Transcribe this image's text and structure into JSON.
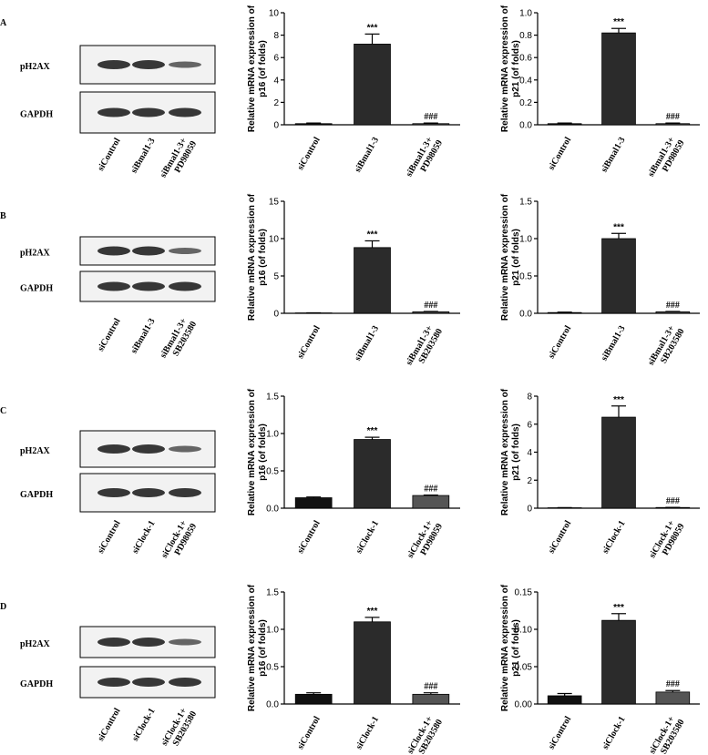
{
  "panel_labels": [
    "A",
    "B",
    "C",
    "D"
  ],
  "blots": [
    {
      "rows": [
        "pH2AX",
        "GAPDH"
      ],
      "lanes": [
        "siControl",
        "siBmal1-3",
        "siBmal1-3+ PD98059"
      ]
    },
    {
      "rows": [
        "pH2AX",
        "GAPDH"
      ],
      "lanes": [
        "siControl",
        "siBmal1-3",
        "siBmal1-3+ SB203580"
      ]
    },
    {
      "rows": [
        "pH2AX",
        "GAPDH"
      ],
      "lanes": [
        "siControl",
        "siClock-1",
        "siClock-1+ PD98059"
      ]
    },
    {
      "rows": [
        "pH2AX",
        "GAPDH"
      ],
      "lanes": [
        "siControl",
        "siClock-1",
        "siClock-1+ SB203580"
      ]
    }
  ],
  "chart_data": [
    {
      "type": "bar",
      "ylabel": [
        "Relative mRNA expression of",
        "p16 (of folds)"
      ],
      "categories": [
        "siControl",
        "siBmal1-3",
        "siBmal1-3+ PD98059"
      ],
      "values": [
        0.1,
        7.2,
        0.1
      ],
      "errors": [
        0.05,
        0.9,
        0.05
      ],
      "annotations": [
        null,
        "***",
        "###"
      ],
      "colors": [
        "#111111",
        "#2b2b2b",
        "#555555"
      ],
      "ylim": [
        0,
        10
      ],
      "yticks": [
        0,
        2,
        4,
        6,
        8,
        10
      ]
    },
    {
      "type": "bar",
      "ylabel": [
        "Relative mRNA expression of",
        "p21 (of folds)"
      ],
      "categories": [
        "siControl",
        "siBmal1-3",
        "siBmal1-3+ PD98059"
      ],
      "values": [
        0.01,
        0.82,
        0.01
      ],
      "errors": [
        0.005,
        0.04,
        0.005
      ],
      "annotations": [
        null,
        "***",
        "###"
      ],
      "colors": [
        "#111111",
        "#2b2b2b",
        "#555555"
      ],
      "ylim": [
        0,
        1
      ],
      "yticks": [
        {
          "value": 0,
          "label": "0.0"
        },
        0.2,
        0.4,
        0.6,
        0.8,
        {
          "value": 1,
          "label": "1.0"
        }
      ]
    },
    {
      "type": "bar",
      "ylabel": [
        "Relative mRNA expression of",
        "p16 (of folds)"
      ],
      "categories": [
        "siControl",
        "siBmal1-3",
        "siBmal1-3+ SB203580"
      ],
      "values": [
        0.05,
        8.8,
        0.2
      ],
      "errors": [
        0.02,
        0.9,
        0.05
      ],
      "annotations": [
        null,
        "***",
        "###"
      ],
      "colors": [
        "#111111",
        "#2b2b2b",
        "#555555"
      ],
      "ylim": [
        0,
        15
      ],
      "yticks": [
        0,
        5,
        10,
        15
      ]
    },
    {
      "type": "bar",
      "ylabel": [
        "Relative mRNA expression of",
        "p21 (of folds)"
      ],
      "categories": [
        "siControl",
        "siBmal1-3",
        "siBmal1-3+ SB203580"
      ],
      "values": [
        0.01,
        1.0,
        0.02
      ],
      "errors": [
        0.005,
        0.07,
        0.005
      ],
      "annotations": [
        null,
        "***",
        "###"
      ],
      "colors": [
        "#111111",
        "#2b2b2b",
        "#555555"
      ],
      "ylim": [
        0,
        1.5
      ],
      "yticks": [
        {
          "value": 0,
          "label": "0.0"
        },
        0.5,
        {
          "value": 1,
          "label": "1.0"
        },
        1.5
      ]
    },
    {
      "type": "bar",
      "ylabel": [
        "Relative mRNA expression of",
        "p16 (of folds)"
      ],
      "categories": [
        "siControl",
        "siClock-1",
        "siClock-1+ PD98059"
      ],
      "values": [
        0.14,
        0.92,
        0.17
      ],
      "errors": [
        0.01,
        0.03,
        0.005
      ],
      "annotations": [
        null,
        "***",
        "###"
      ],
      "colors": [
        "#111111",
        "#2b2b2b",
        "#555555"
      ],
      "ylim": [
        0,
        1.5
      ],
      "yticks": [
        {
          "value": 0,
          "label": "0.0"
        },
        0.5,
        {
          "value": 1,
          "label": "1.0"
        },
        1.5
      ]
    },
    {
      "type": "bar",
      "ylabel": [
        "Relative mRNA expression of",
        "p21 (of folds)"
      ],
      "categories": [
        "siControl",
        "siClock-1",
        "siClock-1+ PD98059"
      ],
      "values": [
        0.03,
        6.5,
        0.05
      ],
      "errors": [
        0.01,
        0.8,
        0.01
      ],
      "annotations": [
        null,
        "***",
        "###"
      ],
      "colors": [
        "#111111",
        "#2b2b2b",
        "#555555"
      ],
      "ylim": [
        0,
        8
      ],
      "yticks": [
        0,
        2,
        4,
        6,
        8
      ]
    },
    {
      "type": "bar",
      "ylabel": [
        "Relative mRNA expression of",
        "p16 (of folds)"
      ],
      "categories": [
        "siControl",
        "siClock-1",
        "siClock-1+ SB203580"
      ],
      "values": [
        0.13,
        1.1,
        0.13
      ],
      "errors": [
        0.02,
        0.06,
        0.02
      ],
      "annotations": [
        null,
        "***",
        "###"
      ],
      "colors": [
        "#111111",
        "#2b2b2b",
        "#555555"
      ],
      "ylim": [
        0,
        1.5
      ],
      "yticks": [
        {
          "value": 0,
          "label": "0.0"
        },
        0.5,
        {
          "value": 1,
          "label": "1.0"
        },
        1.5
      ]
    },
    {
      "type": "bar",
      "ylabel": [
        "Relative mRNA expression of",
        "p21 (of folds)"
      ],
      "categories": [
        "siControl",
        "siClock-1",
        "siClock-1+ SB203580"
      ],
      "values": [
        0.011,
        0.112,
        0.016
      ],
      "errors": [
        0.003,
        0.009,
        0.002
      ],
      "annotations": [
        null,
        "***",
        "###"
      ],
      "colors": [
        "#111111",
        "#2b2b2b",
        "#555555"
      ],
      "ylim": [
        0,
        0.15
      ],
      "yticks": [
        {
          "value": 0,
          "label": "0.00"
        },
        0.05,
        {
          "value": 0.1,
          "label": "0.10"
        },
        0.15
      ]
    }
  ]
}
